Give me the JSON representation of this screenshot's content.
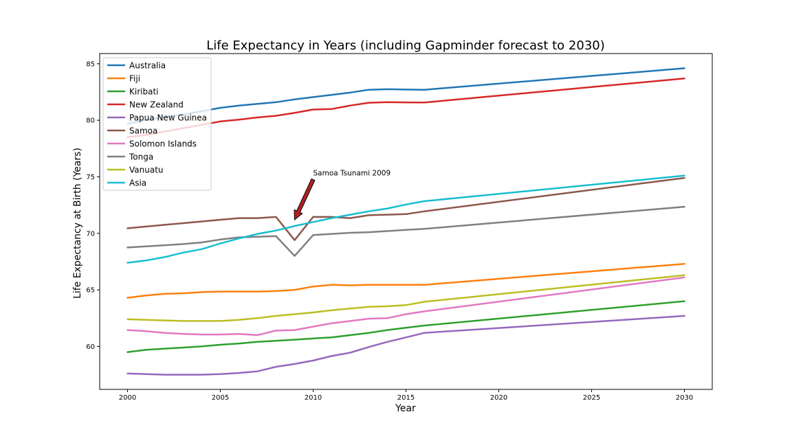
{
  "chart_data": {
    "type": "line",
    "title": "Life Expectancy in Years (including Gapminder forecast to 2030)",
    "xlabel": "Year",
    "ylabel": "Life Expectancy at Birth (Years)",
    "xlim": [
      1998.5,
      2031.5
    ],
    "ylim": [
      56.2,
      85.9
    ],
    "xticks": [
      2000,
      2005,
      2010,
      2015,
      2020,
      2025,
      2030
    ],
    "yticks": [
      60,
      65,
      70,
      75,
      80,
      85
    ],
    "grid": false,
    "legend_position": "upper-left",
    "x": [
      2000,
      2001,
      2002,
      2003,
      2004,
      2005,
      2006,
      2007,
      2008,
      2009,
      2010,
      2011,
      2012,
      2013,
      2014,
      2015,
      2016,
      2030
    ],
    "series": [
      {
        "name": "Australia",
        "color": "#1f77b4",
        "values": [
          79.7,
          80.0,
          80.3,
          80.5,
          80.8,
          81.1,
          81.3,
          81.45,
          81.6,
          81.85,
          82.05,
          82.25,
          82.45,
          82.7,
          82.75,
          82.72,
          82.7,
          84.6
        ]
      },
      {
        "name": "Fiji",
        "color": "#ff7f0e",
        "values": [
          64.3,
          64.5,
          64.65,
          64.7,
          64.8,
          64.85,
          64.85,
          64.85,
          64.9,
          65.0,
          65.3,
          65.45,
          65.4,
          65.45,
          65.45,
          65.45,
          65.45,
          67.3
        ]
      },
      {
        "name": "Kiribati",
        "color": "#2ca02c",
        "values": [
          59.5,
          59.7,
          59.8,
          59.9,
          60.0,
          60.15,
          60.25,
          60.4,
          60.5,
          60.6,
          60.7,
          60.8,
          61.0,
          61.2,
          61.45,
          61.65,
          61.85,
          64.0
        ]
      },
      {
        "name": "New Zealand",
        "color": "#d62728",
        "values": [
          78.5,
          78.7,
          79.0,
          79.3,
          79.6,
          79.9,
          80.05,
          80.25,
          80.4,
          80.65,
          80.95,
          81.0,
          81.3,
          81.55,
          81.6,
          81.58,
          81.57,
          83.7
        ]
      },
      {
        "name": "Papua New Guinea",
        "color": "#9467bd",
        "values": [
          57.6,
          57.55,
          57.5,
          57.5,
          57.5,
          57.55,
          57.65,
          57.8,
          58.2,
          58.45,
          58.75,
          59.15,
          59.45,
          59.95,
          60.4,
          60.8,
          61.2,
          62.7
        ]
      },
      {
        "name": "Samoa",
        "color": "#8c564b",
        "values": [
          70.45,
          70.6,
          70.75,
          70.9,
          71.05,
          71.2,
          71.35,
          71.35,
          71.45,
          69.4,
          71.45,
          71.45,
          71.35,
          71.6,
          71.65,
          71.7,
          71.95,
          74.9
        ]
      },
      {
        "name": "Solomon Islands",
        "color": "#e377c2",
        "values": [
          61.45,
          61.35,
          61.2,
          61.1,
          61.05,
          61.05,
          61.1,
          61.0,
          61.4,
          61.45,
          61.75,
          62.05,
          62.25,
          62.45,
          62.5,
          62.85,
          63.1,
          66.1
        ]
      },
      {
        "name": "Tonga",
        "color": "#7f7f7f",
        "values": [
          68.75,
          68.85,
          68.95,
          69.05,
          69.2,
          69.45,
          69.65,
          69.7,
          69.75,
          68.0,
          69.85,
          69.95,
          70.05,
          70.1,
          70.2,
          70.3,
          70.4,
          72.35
        ]
      },
      {
        "name": "Vanuatu",
        "color": "#bcbd22",
        "values": [
          62.4,
          62.35,
          62.3,
          62.25,
          62.25,
          62.25,
          62.35,
          62.5,
          62.7,
          62.85,
          63.0,
          63.2,
          63.35,
          63.5,
          63.55,
          63.65,
          63.95,
          66.3
        ]
      },
      {
        "name": "Asia",
        "color": "#17becf",
        "values": [
          67.4,
          67.6,
          67.9,
          68.3,
          68.6,
          69.1,
          69.55,
          69.95,
          70.25,
          70.65,
          71.0,
          71.35,
          71.65,
          71.95,
          72.2,
          72.55,
          72.85,
          75.1
        ]
      }
    ],
    "annotations": [
      {
        "text": "Samoa Tsunami 2009",
        "text_x": 2010,
        "text_y": 75.0,
        "arrow_to_x": 2009,
        "arrow_to_y": 71.2
      }
    ]
  }
}
